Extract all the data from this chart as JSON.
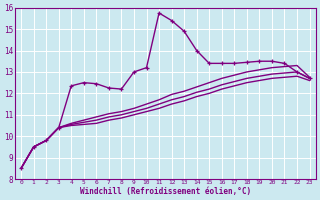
{
  "xlabel": "Windchill (Refroidissement éolien,°C)",
  "bg_color": "#cce9f0",
  "line_color": "#800080",
  "grid_color": "#ffffff",
  "xlim": [
    -0.5,
    23.5
  ],
  "ylim": [
    8,
    16
  ],
  "xticks": [
    0,
    1,
    2,
    3,
    4,
    5,
    6,
    7,
    8,
    9,
    10,
    11,
    12,
    13,
    14,
    15,
    16,
    17,
    18,
    19,
    20,
    21,
    22,
    23
  ],
  "yticks": [
    8,
    9,
    10,
    11,
    12,
    13,
    14,
    15,
    16
  ],
  "series": [
    {
      "x": [
        0,
        1,
        2,
        3,
        4,
        5,
        6,
        7,
        8,
        9,
        10,
        11,
        12,
        13,
        14,
        15,
        16,
        17,
        18,
        19,
        20,
        21,
        22,
        23
      ],
      "y": [
        8.5,
        9.5,
        9.8,
        10.4,
        10.5,
        10.55,
        10.6,
        10.75,
        10.85,
        11.0,
        11.15,
        11.3,
        11.5,
        11.65,
        11.85,
        12.0,
        12.2,
        12.35,
        12.5,
        12.6,
        12.7,
        12.75,
        12.8,
        12.6
      ],
      "marker": false,
      "linewidth": 1.0
    },
    {
      "x": [
        0,
        1,
        2,
        3,
        4,
        5,
        6,
        7,
        8,
        9,
        10,
        11,
        12,
        13,
        14,
        15,
        16,
        17,
        18,
        19,
        20,
        21,
        22,
        23
      ],
      "y": [
        8.5,
        9.5,
        9.8,
        10.4,
        10.55,
        10.65,
        10.75,
        10.9,
        11.0,
        11.15,
        11.3,
        11.5,
        11.7,
        11.85,
        12.05,
        12.2,
        12.4,
        12.55,
        12.7,
        12.8,
        12.9,
        12.95,
        13.0,
        12.7
      ],
      "marker": false,
      "linewidth": 1.0
    },
    {
      "x": [
        0,
        1,
        2,
        3,
        4,
        5,
        6,
        7,
        8,
        9,
        10,
        11,
        12,
        13,
        14,
        15,
        16,
        17,
        18,
        19,
        20,
        21,
        22,
        23
      ],
      "y": [
        8.5,
        9.5,
        9.8,
        10.4,
        10.6,
        10.75,
        10.9,
        11.05,
        11.15,
        11.3,
        11.5,
        11.7,
        11.95,
        12.1,
        12.3,
        12.5,
        12.7,
        12.85,
        13.0,
        13.1,
        13.2,
        13.25,
        13.3,
        12.75
      ],
      "marker": false,
      "linewidth": 1.0
    },
    {
      "x": [
        0,
        1,
        2,
        3,
        4,
        5,
        6,
        7,
        8,
        9,
        10,
        11,
        12,
        13,
        14,
        15,
        16,
        17,
        18,
        19,
        20,
        21,
        22,
        23
      ],
      "y": [
        8.5,
        9.5,
        9.8,
        10.4,
        12.35,
        12.5,
        12.45,
        12.25,
        12.2,
        13.0,
        13.2,
        15.75,
        15.4,
        14.9,
        14.0,
        13.4,
        13.4,
        13.4,
        13.45,
        13.5,
        13.5,
        13.4,
        13.0,
        12.7
      ],
      "marker": true,
      "linewidth": 1.0
    }
  ]
}
